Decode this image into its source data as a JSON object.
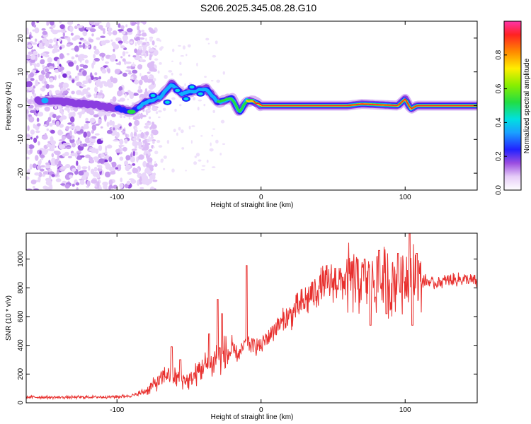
{
  "title": "S206.2025.345.08.28.G10",
  "chart_data": [
    {
      "type": "heatmap",
      "name": "spectrogram",
      "xlabel": "Height of straight line (km)",
      "ylabel": "Frequency (Hz)",
      "xlim": [
        -163,
        150
      ],
      "ylim": [
        -25,
        25
      ],
      "x_ticks": [
        -100,
        0,
        100
      ],
      "y_ticks": [
        -20,
        -10,
        0,
        10,
        20
      ],
      "colorbar": {
        "label": "Normalized spectral amplitude",
        "range": [
          0,
          1
        ],
        "ticks": [
          0.0,
          0.2,
          0.4,
          0.6,
          0.8
        ]
      },
      "ridge": [
        {
          "x": -150,
          "f": 1.5
        },
        {
          "x": -120,
          "f": 0.5
        },
        {
          "x": -100,
          "f": -0.8
        },
        {
          "x": -90,
          "f": -1.8
        },
        {
          "x": -80,
          "f": 1.0
        },
        {
          "x": -70,
          "f": 2.5
        },
        {
          "x": -62,
          "f": 6.5
        },
        {
          "x": -55,
          "f": 3.5
        },
        {
          "x": -45,
          "f": 4.5
        },
        {
          "x": -38,
          "f": 5.0
        },
        {
          "x": -30,
          "f": 1.0
        },
        {
          "x": -20,
          "f": 2.2
        },
        {
          "x": -15,
          "f": -2.0
        },
        {
          "x": -10,
          "f": 1.5
        },
        {
          "x": -5,
          "f": 1.2
        },
        {
          "x": 0,
          "f": 0.0
        },
        {
          "x": 60,
          "f": 0.0
        },
        {
          "x": 70,
          "f": 0.5
        },
        {
          "x": 95,
          "f": 0.0
        },
        {
          "x": 100,
          "f": 2.0
        },
        {
          "x": 104,
          "f": -1.0
        },
        {
          "x": 108,
          "f": 0.0
        },
        {
          "x": 150,
          "f": 0.0
        }
      ]
    },
    {
      "type": "line",
      "name": "snr",
      "xlabel": "Height of straight line (km)",
      "ylabel": "SNR (10 * v/v)",
      "xlim": [
        -163,
        150
      ],
      "ylim": [
        0,
        1180
      ],
      "x_ticks": [
        -100,
        0,
        100
      ],
      "y_ticks": [
        0,
        200,
        400,
        600,
        800,
        1000
      ],
      "color": "#e8302e",
      "series": [
        {
          "name": "SNR",
          "x": [
            -163,
            -140,
            -120,
            -100,
            -90,
            -85,
            -80,
            -75,
            -70,
            -65,
            -60,
            -55,
            -50,
            -45,
            -40,
            -35,
            -30,
            -25,
            -20,
            -15,
            -10,
            -5,
            0,
            10,
            20,
            30,
            40,
            50,
            60,
            70,
            80,
            90,
            100,
            110,
            120,
            130,
            140,
            150
          ],
          "y": [
            40,
            38,
            40,
            42,
            50,
            60,
            85,
            120,
            160,
            200,
            180,
            165,
            150,
            200,
            260,
            250,
            330,
            330,
            360,
            330,
            430,
            390,
            400,
            520,
            600,
            700,
            800,
            840,
            860,
            850,
            860,
            830,
            880,
            860,
            830,
            850,
            860,
            840
          ]
        }
      ],
      "spikes": [
        {
          "x": -62,
          "y": 390
        },
        {
          "x": -56,
          "y": 300
        },
        {
          "x": -36,
          "y": 480
        },
        {
          "x": -30,
          "y": 720
        },
        {
          "x": -27,
          "y": 620
        },
        {
          "x": -10,
          "y": 955
        },
        {
          "x": 72,
          "y": 1000
        },
        {
          "x": 76,
          "y": 540
        },
        {
          "x": 82,
          "y": 1060
        },
        {
          "x": 87,
          "y": 620
        },
        {
          "x": 95,
          "y": 1040
        },
        {
          "x": 103,
          "y": 1180
        },
        {
          "x": 105,
          "y": 540
        },
        {
          "x": 108,
          "y": 1040
        }
      ]
    }
  ]
}
